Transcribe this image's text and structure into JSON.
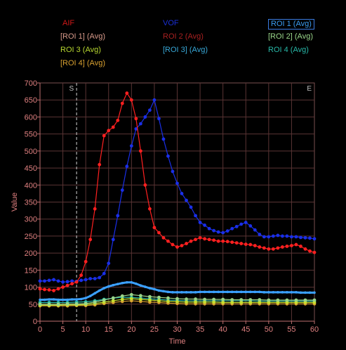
{
  "chart_data": {
    "type": "line",
    "title": "",
    "xlabel": "Time",
    "ylabel": "Value",
    "xlim": [
      0,
      60
    ],
    "ylim": [
      0,
      700
    ],
    "xticks": [
      0,
      5,
      10,
      15,
      20,
      25,
      30,
      35,
      40,
      45,
      50,
      55,
      60
    ],
    "yticks": [
      0,
      50,
      100,
      150,
      200,
      250,
      300,
      350,
      400,
      450,
      500,
      550,
      600,
      650,
      700
    ],
    "grid": true,
    "markers": [
      {
        "label": "S",
        "x": 8
      },
      {
        "label": "E",
        "x": 60
      }
    ],
    "legend": [
      {
        "label": "AIF",
        "color": "#d01818"
      },
      {
        "label": "VOF",
        "color": "#1a2fd8"
      },
      {
        "label": "ROI 1 (Avg)",
        "color": "#3b9cf0",
        "selected": true
      },
      {
        "label": "[ROI 1] (Avg)",
        "color": "#d89a8a"
      },
      {
        "label": "ROI 2 (Avg)",
        "color": "#a82020"
      },
      {
        "label": "[ROI 2] (Avg)",
        "color": "#9ad68a"
      },
      {
        "label": "ROI 3 (Avg)",
        "color": "#b8d830"
      },
      {
        "label": "[ROI 3] (Avg)",
        "color": "#38a8d8"
      },
      {
        "label": "ROI 4 (Avg)",
        "color": "#28b8a8"
      },
      {
        "label": "[ROI 4] (Avg)",
        "color": "#d8a030"
      }
    ],
    "series": [
      {
        "name": "AIF",
        "color": "#ff2020",
        "x": [
          0,
          1,
          2,
          3,
          4,
          5,
          6,
          7,
          8,
          9,
          10,
          11,
          12,
          13,
          14,
          15,
          16,
          17,
          18,
          19,
          20,
          21,
          22,
          23,
          24,
          25,
          26,
          27,
          28,
          29,
          30,
          31,
          32,
          33,
          34,
          35,
          36,
          37,
          38,
          39,
          40,
          41,
          42,
          43,
          44,
          45,
          46,
          47,
          48,
          49,
          50,
          51,
          52,
          53,
          54,
          55,
          56,
          57,
          58,
          59,
          60
        ],
        "values": [
          95,
          93,
          92,
          90,
          95,
          100,
          105,
          110,
          115,
          135,
          175,
          240,
          330,
          460,
          545,
          560,
          570,
          590,
          640,
          670,
          650,
          595,
          500,
          400,
          330,
          275,
          260,
          245,
          235,
          225,
          218,
          222,
          228,
          235,
          240,
          245,
          242,
          240,
          238,
          235,
          235,
          234,
          232,
          230,
          228,
          226,
          225,
          222,
          218,
          215,
          212,
          212,
          215,
          218,
          220,
          222,
          225,
          220,
          212,
          206,
          202
        ]
      },
      {
        "name": "VOF",
        "color": "#1a2fe8",
        "x": [
          0,
          1,
          2,
          3,
          4,
          5,
          6,
          7,
          8,
          9,
          10,
          11,
          12,
          13,
          14,
          15,
          16,
          17,
          18,
          19,
          20,
          21,
          22,
          23,
          24,
          25,
          26,
          27,
          28,
          29,
          30,
          31,
          32,
          33,
          34,
          35,
          36,
          37,
          38,
          39,
          40,
          41,
          42,
          43,
          44,
          45,
          46,
          47,
          48,
          49,
          50,
          51,
          52,
          53,
          54,
          55,
          56,
          57,
          58,
          59,
          60
        ],
        "values": [
          118,
          118,
          120,
          122,
          118,
          115,
          116,
          118,
          117,
          120,
          122,
          125,
          125,
          128,
          140,
          170,
          240,
          310,
          385,
          455,
          515,
          565,
          580,
          600,
          620,
          650,
          595,
          535,
          485,
          440,
          405,
          375,
          355,
          335,
          310,
          290,
          282,
          272,
          266,
          262,
          260,
          265,
          272,
          278,
          285,
          290,
          280,
          268,
          255,
          248,
          248,
          250,
          252,
          250,
          250,
          248,
          248,
          246,
          245,
          244,
          242
        ]
      },
      {
        "name": "ROI 1 (Avg)",
        "color": "#3ba0ff",
        "x": [
          0,
          1,
          2,
          3,
          4,
          5,
          6,
          7,
          8,
          9,
          10,
          11,
          12,
          13,
          14,
          15,
          16,
          17,
          18,
          19,
          20,
          21,
          22,
          23,
          24,
          25,
          26,
          27,
          28,
          29,
          30,
          31,
          32,
          33,
          34,
          35,
          36,
          37,
          38,
          39,
          40,
          41,
          42,
          43,
          44,
          45,
          46,
          47,
          48,
          49,
          50,
          51,
          52,
          53,
          54,
          55,
          56,
          57,
          58,
          59,
          60
        ],
        "values": [
          63,
          63,
          64,
          64,
          63,
          63,
          63,
          64,
          64,
          65,
          68,
          74,
          82,
          90,
          97,
          102,
          106,
          109,
          112,
          114,
          114,
          110,
          105,
          101,
          97,
          94,
          90,
          88,
          86,
          85,
          85,
          85,
          85,
          85,
          85,
          86,
          86,
          86,
          86,
          86,
          86,
          86,
          86,
          86,
          86,
          86,
          86,
          86,
          86,
          85,
          85,
          85,
          85,
          85,
          85,
          85,
          85,
          84,
          84,
          84,
          84
        ]
      },
      {
        "name": "[ROI 2] (Avg)",
        "color": "#9ad68a",
        "x": [
          0,
          2,
          4,
          6,
          8,
          10,
          12,
          14,
          16,
          18,
          20,
          22,
          24,
          26,
          28,
          30,
          32,
          34,
          36,
          38,
          40,
          42,
          44,
          46,
          48,
          50,
          52,
          54,
          56,
          58,
          60
        ],
        "values": [
          50,
          50,
          50,
          51,
          51,
          52,
          56,
          62,
          68,
          74,
          78,
          75,
          72,
          70,
          68,
          66,
          65,
          65,
          64,
          64,
          64,
          63,
          63,
          63,
          63,
          62,
          62,
          62,
          62,
          62,
          62
        ]
      },
      {
        "name": "ROI 3 (Avg)",
        "color": "#c8e030",
        "x": [
          0,
          2,
          4,
          6,
          8,
          10,
          12,
          14,
          16,
          18,
          20,
          22,
          24,
          26,
          28,
          30,
          32,
          34,
          36,
          38,
          40,
          42,
          44,
          46,
          48,
          50,
          52,
          54,
          56,
          58,
          60
        ],
        "values": [
          47,
          47,
          47,
          48,
          48,
          49,
          52,
          56,
          60,
          64,
          66,
          64,
          62,
          60,
          58,
          57,
          56,
          56,
          56,
          56,
          55,
          55,
          55,
          55,
          55,
          55,
          55,
          55,
          55,
          55,
          55
        ]
      },
      {
        "name": "ROI 4 (Avg)",
        "color": "#28b8a8",
        "x": [
          0,
          2,
          4,
          6,
          8,
          10,
          12,
          14,
          16,
          18,
          20,
          22,
          24,
          26,
          28,
          30,
          32,
          34,
          36,
          38,
          40,
          42,
          44,
          46,
          48,
          50,
          52,
          54,
          56,
          58,
          60
        ],
        "values": [
          55,
          55,
          55,
          55,
          56,
          57,
          60,
          64,
          68,
          70,
          70,
          68,
          66,
          64,
          62,
          61,
          60,
          60,
          60,
          60,
          60,
          60,
          60,
          60,
          59,
          59,
          59,
          59,
          59,
          59,
          59
        ]
      },
      {
        "name": "[ROI 4] (Avg)",
        "color": "#d8a030",
        "x": [
          0,
          2,
          4,
          6,
          8,
          10,
          12,
          14,
          16,
          18,
          20,
          22,
          24,
          26,
          28,
          30,
          32,
          34,
          36,
          38,
          40,
          42,
          44,
          46,
          48,
          50,
          52,
          54,
          56,
          58,
          60
        ],
        "values": [
          45,
          45,
          45,
          45,
          46,
          46,
          48,
          52,
          55,
          58,
          60,
          58,
          56,
          55,
          53,
          52,
          51,
          51,
          51,
          51,
          51,
          51,
          51,
          51,
          51,
          51,
          51,
          51,
          51,
          51,
          51
        ]
      }
    ]
  }
}
